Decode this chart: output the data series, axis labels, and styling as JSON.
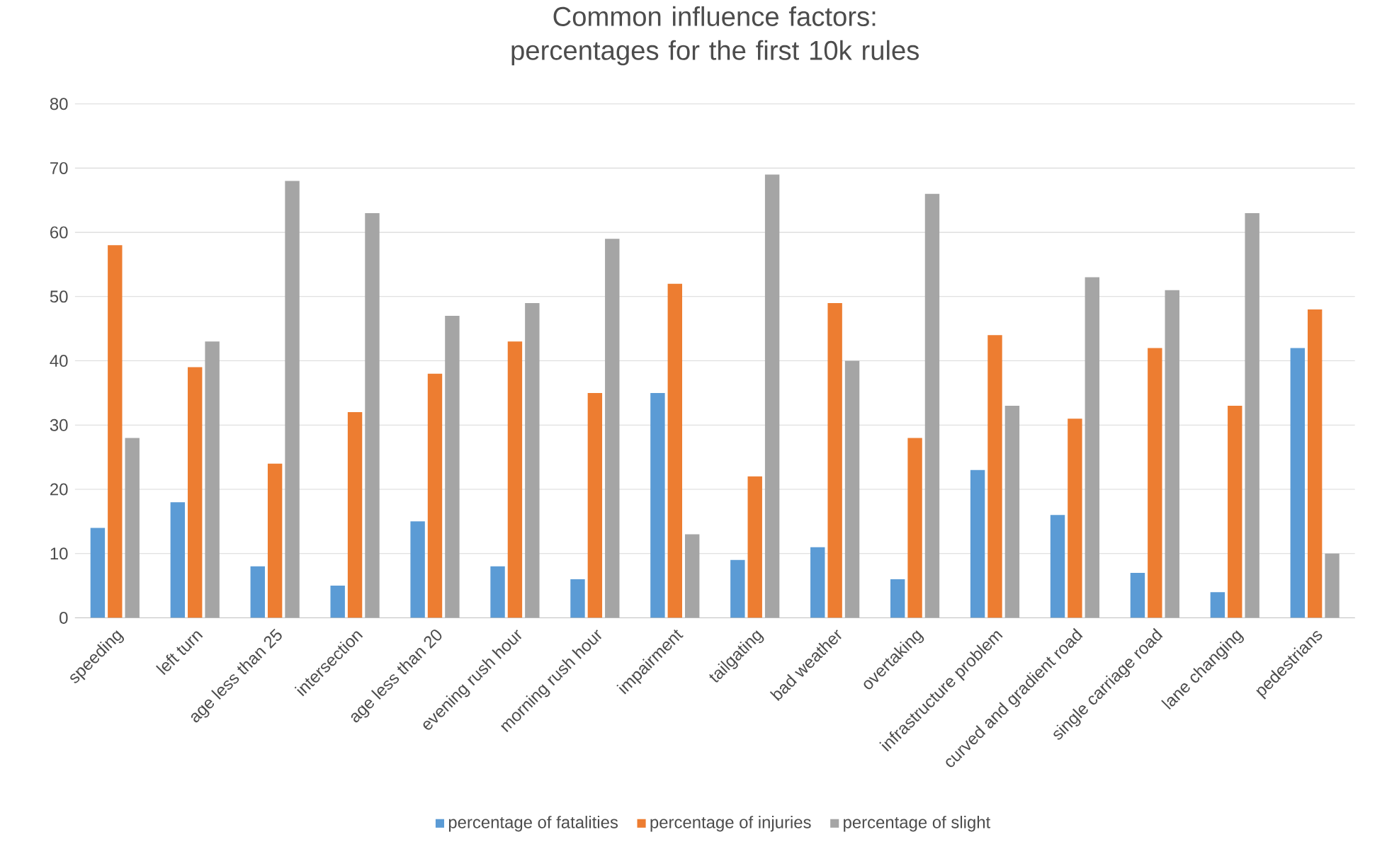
{
  "chart_data": {
    "type": "bar",
    "title": "Common influence factors: percentages for the first 10k rules",
    "categories": [
      "speeding",
      "left turn",
      "age less than 25",
      "intersection",
      "age less than 20",
      "evening rush hour",
      "morning rush hour",
      "impairment",
      "tailgating",
      "bad weather",
      "overtaking",
      "infrastructure problem",
      "curved and gradient road",
      "single carriage road",
      "lane changing",
      "pedestrians"
    ],
    "series": [
      {
        "name": "percentage of fatalities",
        "color": "#5b9bd5",
        "values": [
          14,
          18,
          8,
          5,
          15,
          8,
          6,
          35,
          9,
          11,
          6,
          23,
          16,
          7,
          4,
          42
        ]
      },
      {
        "name": "percentage of injuries",
        "color": "#ed7d31",
        "values": [
          58,
          39,
          24,
          32,
          38,
          43,
          35,
          52,
          22,
          49,
          28,
          44,
          31,
          42,
          33,
          48
        ]
      },
      {
        "name": "percentage of slight",
        "color": "#a5a5a5",
        "values": [
          28,
          43,
          68,
          63,
          47,
          49,
          59,
          13,
          69,
          40,
          66,
          33,
          53,
          51,
          63,
          10
        ]
      }
    ],
    "ylim": [
      0,
      80
    ],
    "yticks": [
      0,
      10,
      20,
      30,
      40,
      50,
      60,
      70,
      80
    ],
    "grid": "y",
    "legend": "bottom"
  }
}
